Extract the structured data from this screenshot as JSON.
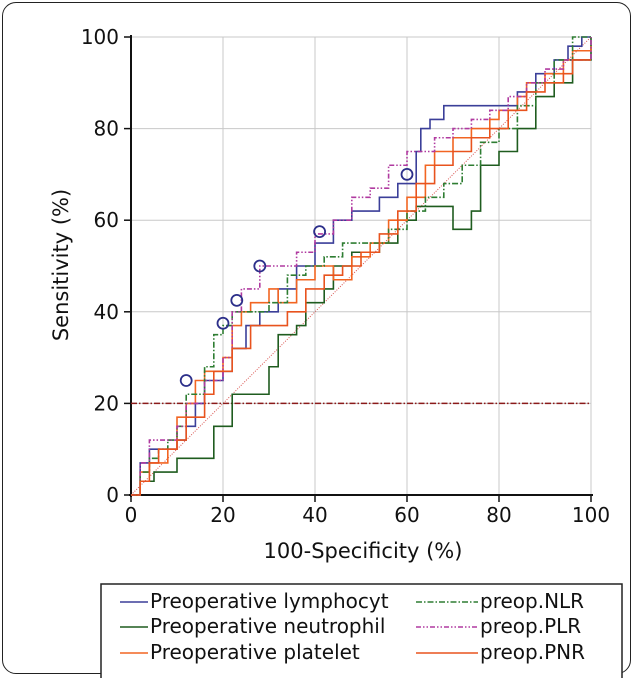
{
  "chart_data": {
    "type": "line",
    "xlabel": "100-Specificity (%)",
    "ylabel": "Sensitivity (%)",
    "xlim": [
      0,
      100
    ],
    "ylim": [
      0,
      100
    ],
    "xticks": [
      "0",
      "20",
      "40",
      "60",
      "80",
      "100"
    ],
    "yticks": [
      "0",
      "20",
      "40",
      "60",
      "80",
      "100"
    ],
    "grid": true,
    "legend_placement": "bottom",
    "reference_line": {
      "y": 20,
      "color": "#8b1a1a"
    },
    "diagonal_color": "#d9534f",
    "series": [
      {
        "name": "Preoperative lymphocyt",
        "color": "#3b3f99",
        "style": "solid",
        "points": [
          [
            0,
            0
          ],
          [
            2,
            7
          ],
          [
            4,
            10
          ],
          [
            8,
            10
          ],
          [
            10,
            12
          ],
          [
            12,
            15
          ],
          [
            14,
            20
          ],
          [
            16,
            25
          ],
          [
            20,
            27
          ],
          [
            22,
            32
          ],
          [
            25,
            37
          ],
          [
            28,
            40
          ],
          [
            32,
            45
          ],
          [
            36,
            50
          ],
          [
            40,
            55
          ],
          [
            44,
            60
          ],
          [
            48,
            62
          ],
          [
            54,
            65
          ],
          [
            58,
            68
          ],
          [
            62,
            75
          ],
          [
            63,
            80
          ],
          [
            65,
            82
          ],
          [
            68,
            85
          ],
          [
            80,
            85
          ],
          [
            84,
            88
          ],
          [
            88,
            92
          ],
          [
            92,
            95
          ],
          [
            95,
            98
          ],
          [
            98,
            100
          ],
          [
            100,
            100
          ]
        ],
        "markers": [
          [
            12,
            25
          ],
          [
            23,
            42.5
          ]
        ]
      },
      {
        "name": "Preoperative neutrophil",
        "color": "#1f5c1f",
        "style": "solid",
        "points": [
          [
            0,
            0
          ],
          [
            2,
            3
          ],
          [
            5,
            5
          ],
          [
            8,
            5
          ],
          [
            10,
            8
          ],
          [
            15,
            8
          ],
          [
            18,
            15
          ],
          [
            22,
            22
          ],
          [
            26,
            22
          ],
          [
            30,
            28
          ],
          [
            32,
            35
          ],
          [
            36,
            37
          ],
          [
            38,
            42
          ],
          [
            42,
            45
          ],
          [
            44,
            50
          ],
          [
            48,
            53
          ],
          [
            54,
            55
          ],
          [
            58,
            60
          ],
          [
            62,
            63
          ],
          [
            68,
            63
          ],
          [
            70,
            58
          ],
          [
            74,
            62
          ],
          [
            76,
            72
          ],
          [
            80,
            75
          ],
          [
            84,
            80
          ],
          [
            88,
            87
          ],
          [
            92,
            90
          ],
          [
            96,
            95
          ],
          [
            100,
            100
          ]
        ],
        "markers": []
      },
      {
        "name": "Preoperative platelet",
        "color": "#f26522",
        "style": "solid",
        "points": [
          [
            0,
            0
          ],
          [
            2,
            5
          ],
          [
            4,
            7
          ],
          [
            8,
            10
          ],
          [
            10,
            17
          ],
          [
            12,
            20
          ],
          [
            14,
            25
          ],
          [
            16,
            27
          ],
          [
            20,
            30
          ],
          [
            22,
            37
          ],
          [
            24,
            40
          ],
          [
            26,
            42
          ],
          [
            30,
            45
          ],
          [
            32,
            42
          ],
          [
            36,
            47
          ],
          [
            40,
            50
          ],
          [
            44,
            47
          ],
          [
            48,
            52
          ],
          [
            52,
            55
          ],
          [
            56,
            60
          ],
          [
            60,
            65
          ],
          [
            64,
            72
          ],
          [
            66,
            75
          ],
          [
            70,
            78
          ],
          [
            74,
            80
          ],
          [
            78,
            82
          ],
          [
            80,
            84
          ],
          [
            84,
            87
          ],
          [
            86,
            90
          ],
          [
            90,
            92
          ],
          [
            94,
            95
          ],
          [
            96,
            97
          ],
          [
            100,
            98
          ]
        ],
        "markers": []
      },
      {
        "name": "preop.NLR",
        "color": "#2e7d32",
        "style": "dashdot",
        "points": [
          [
            0,
            0
          ],
          [
            2,
            5
          ],
          [
            4,
            8
          ],
          [
            6,
            10
          ],
          [
            8,
            12
          ],
          [
            10,
            15
          ],
          [
            12,
            22
          ],
          [
            16,
            28
          ],
          [
            18,
            35
          ],
          [
            20,
            37
          ],
          [
            22,
            40
          ],
          [
            26,
            40
          ],
          [
            30,
            42
          ],
          [
            34,
            48
          ],
          [
            38,
            50
          ],
          [
            42,
            52
          ],
          [
            46,
            55
          ],
          [
            52,
            55
          ],
          [
            56,
            58
          ],
          [
            60,
            62
          ],
          [
            64,
            65
          ],
          [
            68,
            68
          ],
          [
            72,
            72
          ],
          [
            76,
            77
          ],
          [
            80,
            80
          ],
          [
            84,
            85
          ],
          [
            88,
            90
          ],
          [
            92,
            95
          ],
          [
            96,
            100
          ],
          [
            100,
            100
          ]
        ],
        "markers": [
          [
            20,
            37.5
          ]
        ]
      },
      {
        "name": "preop.PLR",
        "color": "#b03aa0",
        "style": "dashdotdot",
        "points": [
          [
            0,
            0
          ],
          [
            2,
            7
          ],
          [
            4,
            12
          ],
          [
            8,
            12
          ],
          [
            10,
            15
          ],
          [
            12,
            20
          ],
          [
            16,
            25
          ],
          [
            20,
            30
          ],
          [
            22,
            40
          ],
          [
            24,
            45
          ],
          [
            28,
            50
          ],
          [
            32,
            50
          ],
          [
            36,
            53
          ],
          [
            40,
            57
          ],
          [
            44,
            60
          ],
          [
            48,
            65
          ],
          [
            52,
            67
          ],
          [
            56,
            72
          ],
          [
            60,
            75
          ],
          [
            64,
            75
          ],
          [
            66,
            78
          ],
          [
            70,
            80
          ],
          [
            74,
            82
          ],
          [
            78,
            84
          ],
          [
            82,
            87
          ],
          [
            86,
            90
          ],
          [
            90,
            93
          ],
          [
            94,
            95
          ],
          [
            100,
            100
          ]
        ],
        "markers": [
          [
            28,
            50
          ],
          [
            41,
            57.5
          ],
          [
            60,
            70
          ]
        ]
      },
      {
        "name": "preop.PNR",
        "color": "#e8531e",
        "style": "solid",
        "points": [
          [
            0,
            0
          ],
          [
            2,
            3
          ],
          [
            4,
            7
          ],
          [
            6,
            10
          ],
          [
            10,
            12
          ],
          [
            12,
            17
          ],
          [
            16,
            22
          ],
          [
            18,
            27
          ],
          [
            22,
            32
          ],
          [
            26,
            37
          ],
          [
            30,
            37
          ],
          [
            34,
            40
          ],
          [
            38,
            45
          ],
          [
            42,
            48
          ],
          [
            46,
            50
          ],
          [
            50,
            53
          ],
          [
            54,
            57
          ],
          [
            58,
            62
          ],
          [
            62,
            68
          ],
          [
            66,
            72
          ],
          [
            70,
            75
          ],
          [
            74,
            78
          ],
          [
            78,
            80
          ],
          [
            82,
            84
          ],
          [
            86,
            88
          ],
          [
            90,
            90
          ],
          [
            94,
            92
          ],
          [
            96,
            95
          ],
          [
            100,
            95
          ]
        ],
        "markers": []
      }
    ]
  }
}
